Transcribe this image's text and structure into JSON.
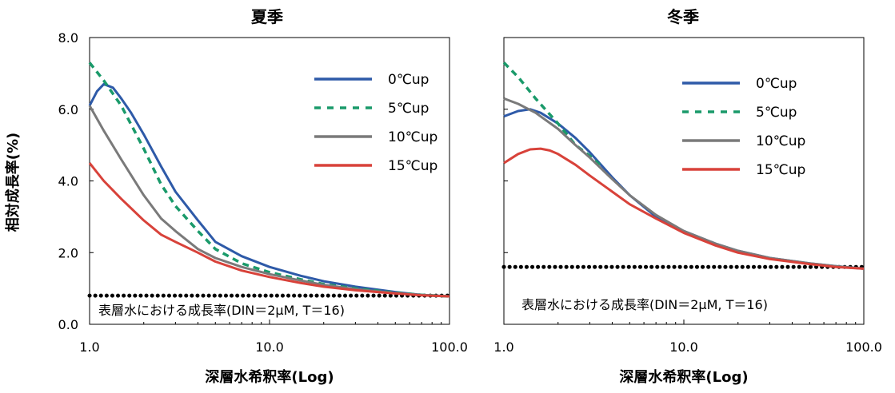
{
  "figure": {
    "ylabel": "相対成長率(%)",
    "xlabel": "深層水希釈率(Log)"
  },
  "chart_data": [
    {
      "type": "line",
      "title": "夏季",
      "xscale": "log",
      "xlim": [
        1.0,
        100.0
      ],
      "ylim": [
        0.0,
        8.0
      ],
      "xticks": [
        "1.0",
        "10.0",
        "100.0"
      ],
      "yticks": [
        "0.0",
        "2.0",
        "4.0",
        "6.0",
        "8.0"
      ],
      "xlabel": "深層水希釈率(Log)",
      "ylabel": "相対成長率(%)",
      "legend_position": "top-right",
      "series": [
        {
          "name": "0℃up",
          "color": "#2e5aa8",
          "style": "solid",
          "x": [
            1.0,
            1.1,
            1.2,
            1.35,
            1.5,
            1.7,
            2.0,
            2.5,
            3.0,
            4.0,
            5.0,
            7.0,
            10.0,
            15.0,
            20.0,
            30.0,
            50.0,
            70.0,
            100.0
          ],
          "y": [
            6.1,
            6.5,
            6.7,
            6.6,
            6.3,
            5.9,
            5.3,
            4.4,
            3.7,
            2.9,
            2.3,
            1.9,
            1.6,
            1.35,
            1.2,
            1.05,
            0.9,
            0.82,
            0.78
          ]
        },
        {
          "name": "5℃up",
          "color": "#1a9a6a",
          "style": "dashed",
          "x": [
            1.0,
            1.2,
            1.5,
            2.0,
            2.5,
            3.0,
            4.0,
            5.0,
            7.0,
            10.0,
            15.0,
            20.0,
            30.0,
            50.0,
            70.0,
            100.0
          ],
          "y": [
            7.3,
            6.8,
            6.1,
            4.9,
            3.9,
            3.3,
            2.6,
            2.1,
            1.7,
            1.45,
            1.25,
            1.12,
            1.0,
            0.88,
            0.82,
            0.78
          ]
        },
        {
          "name": "10℃up",
          "color": "#7a7a7a",
          "style": "solid",
          "x": [
            1.0,
            1.2,
            1.5,
            2.0,
            2.5,
            3.0,
            4.0,
            5.0,
            7.0,
            10.0,
            15.0,
            20.0,
            30.0,
            50.0,
            70.0,
            100.0
          ],
          "y": [
            6.1,
            5.4,
            4.6,
            3.6,
            2.95,
            2.6,
            2.1,
            1.85,
            1.6,
            1.4,
            1.22,
            1.1,
            0.98,
            0.87,
            0.82,
            0.78
          ]
        },
        {
          "name": "15℃up",
          "color": "#d8423a",
          "style": "solid",
          "x": [
            1.0,
            1.2,
            1.5,
            2.0,
            2.5,
            3.0,
            4.0,
            5.0,
            7.0,
            10.0,
            15.0,
            20.0,
            30.0,
            50.0,
            70.0,
            100.0
          ],
          "y": [
            4.5,
            4.0,
            3.5,
            2.9,
            2.5,
            2.3,
            2.0,
            1.75,
            1.5,
            1.32,
            1.15,
            1.05,
            0.95,
            0.86,
            0.81,
            0.78
          ]
        }
      ],
      "baseline": {
        "y": 0.8,
        "label": "表層水における成長率(DIN＝2μM, T＝16)",
        "style": "dotted",
        "color": "#000000"
      }
    },
    {
      "type": "line",
      "title": "冬季",
      "xscale": "log",
      "xlim": [
        1.0,
        100.0
      ],
      "ylim": [
        0.0,
        8.0
      ],
      "xticks": [
        "1.0",
        "10.0",
        "100.0"
      ],
      "yticks": [],
      "xlabel": "深層水希釈率(Log)",
      "ylabel": "",
      "legend_position": "top-right",
      "series": [
        {
          "name": "0℃up",
          "color": "#2e5aa8",
          "style": "solid",
          "x": [
            1.0,
            1.2,
            1.4,
            1.6,
            2.0,
            2.5,
            3.0,
            4.0,
            5.0,
            7.0,
            10.0,
            15.0,
            20.0,
            30.0,
            50.0,
            70.0,
            100.0
          ],
          "y": [
            5.8,
            5.95,
            6.0,
            5.9,
            5.6,
            5.2,
            4.8,
            4.1,
            3.6,
            3.0,
            2.6,
            2.25,
            2.05,
            1.85,
            1.7,
            1.62,
            1.55
          ]
        },
        {
          "name": "5℃up",
          "color": "#1a9a6a",
          "style": "dashed",
          "x": [
            1.0,
            1.2,
            1.5,
            2.0,
            2.5,
            3.0,
            3.5
          ],
          "y": [
            7.3,
            6.9,
            6.3,
            5.6,
            5.0,
            4.7,
            4.4
          ]
        },
        {
          "name": "10℃up",
          "color": "#7a7a7a",
          "style": "solid",
          "x": [
            1.0,
            1.2,
            1.5,
            2.0,
            2.5,
            3.0,
            4.0,
            5.0,
            7.0,
            10.0,
            15.0,
            20.0,
            30.0,
            50.0,
            70.0,
            100.0
          ],
          "y": [
            6.3,
            6.15,
            5.9,
            5.45,
            5.0,
            4.65,
            4.05,
            3.6,
            3.05,
            2.6,
            2.25,
            2.05,
            1.85,
            1.7,
            1.62,
            1.55
          ]
        },
        {
          "name": "15℃up",
          "color": "#d8423a",
          "style": "solid",
          "x": [
            1.0,
            1.2,
            1.4,
            1.6,
            1.8,
            2.0,
            2.5,
            3.0,
            4.0,
            5.0,
            7.0,
            10.0,
            15.0,
            20.0,
            30.0,
            50.0,
            70.0,
            100.0
          ],
          "y": [
            4.5,
            4.75,
            4.88,
            4.9,
            4.85,
            4.75,
            4.45,
            4.15,
            3.7,
            3.35,
            2.95,
            2.55,
            2.2,
            2.0,
            1.82,
            1.68,
            1.6,
            1.55
          ]
        }
      ],
      "baseline": {
        "y": 1.6,
        "label": "表層水における成長率(DIN＝2μM, T＝16)",
        "style": "dotted",
        "color": "#000000"
      }
    }
  ]
}
